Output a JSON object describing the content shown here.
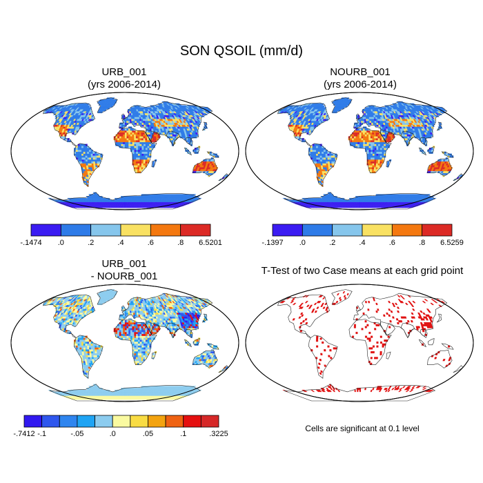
{
  "figure": {
    "title": "SON QSOIL (mm/d)"
  },
  "colors": {
    "abs_scale": [
      "#3b1cf2",
      "#2e7be8",
      "#86c6ec",
      "#f9e162",
      "#f4780f",
      "#dc2a25"
    ],
    "diff_scale": [
      "#3119f0",
      "#2f57ee",
      "#2f85ef",
      "#1fa4f4",
      "#8cccef",
      "#fafaa0",
      "#f9dc43",
      "#f3a30f",
      "#ef6212",
      "#e51010",
      "#d62828"
    ],
    "ttest_mark": "#e01010",
    "land_outline": "#222222",
    "ocean": "#ffffff"
  },
  "panels": [
    {
      "id": "urb",
      "title_line1": "URB_001",
      "title_line2": "(yrs 2006-2014)",
      "colorbar": {
        "tick_labels": [
          "-.1474",
          ".0",
          ".2",
          ".4",
          ".6",
          ".8",
          "6.5201"
        ]
      }
    },
    {
      "id": "nourb",
      "title_line1": "NOURB_001",
      "title_line2": "(yrs 2006-2014)",
      "colorbar": {
        "tick_labels": [
          "-.1397",
          ".0",
          ".2",
          ".4",
          ".6",
          ".8",
          "6.5259"
        ]
      }
    },
    {
      "id": "diff",
      "title_line1": "URB_001",
      "title_line2": "- NOURB_001",
      "colorbar": {
        "tick_labels": [
          "-.7412",
          "-.1",
          "-.05",
          ".0",
          ".05",
          ".1",
          ".3225"
        ]
      }
    },
    {
      "id": "ttest",
      "title_line1": "T-Test of two Case means at each grid point",
      "note": "Cells are significant at 0.1 level"
    }
  ]
}
